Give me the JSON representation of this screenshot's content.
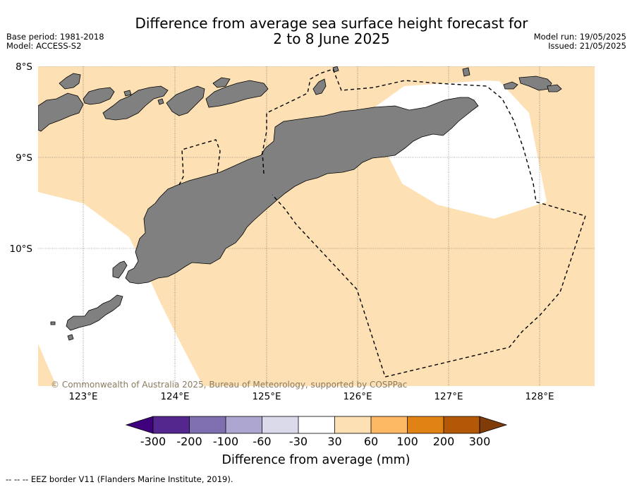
{
  "header": {
    "title_line1": "Difference from average sea surface height forecast for",
    "title_line2": "2 to 8 June 2025",
    "base_period": "Base period: 1981-2018",
    "model": "Model: ACCESS-S2",
    "model_run": "Model run: 19/05/2025",
    "issued": "Issued: 21/05/2025"
  },
  "map": {
    "lat_labels": [
      "8°S",
      "9°S",
      "10°S"
    ],
    "lon_labels": [
      "123°E",
      "124°E",
      "125°E",
      "126°E",
      "127°E",
      "128°E"
    ],
    "credit": "© Commonwealth of Australia 2025, Bureau of Meteorology, supported by COSPPac",
    "colors": {
      "land": "#808080",
      "anomaly_30_60": "#fde0b4",
      "anomaly_neutral": "#ffffff"
    }
  },
  "colorbar": {
    "ticks": [
      "-300",
      "-200",
      "-100",
      "-60",
      "-30",
      "30",
      "60",
      "100",
      "200",
      "300"
    ],
    "colors": [
      "#3f007d",
      "#54278f",
      "#7e6fb0",
      "#ada6d0",
      "#dadaeb",
      "#ffffff",
      "#fde0b4",
      "#fdb863",
      "#e08214",
      "#b35806",
      "#7f3b08"
    ],
    "title": "Difference from average (mm)"
  },
  "footnote": "--  --  -- EEZ border V11 (Flanders Marine Institute, 2019)."
}
